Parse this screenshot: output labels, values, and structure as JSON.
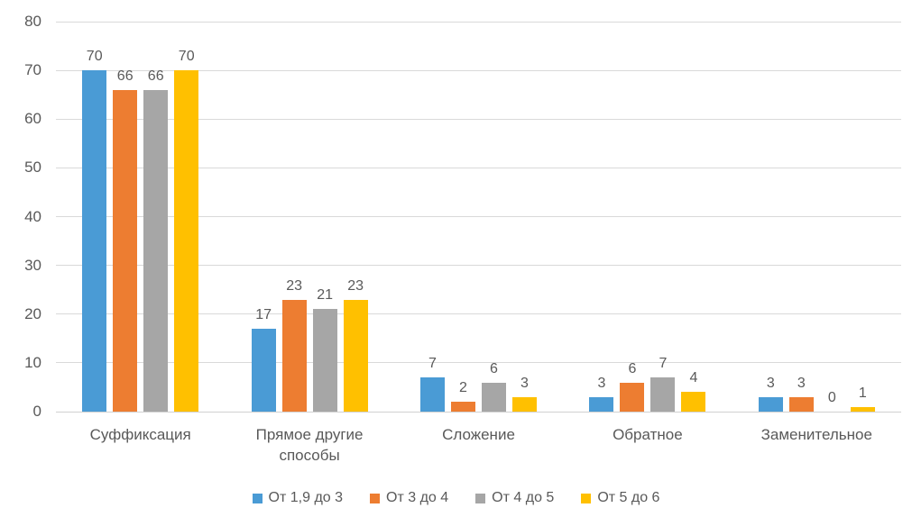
{
  "chart_data": {
    "type": "bar",
    "title": "",
    "xlabel": "",
    "ylabel": "",
    "categories": [
      "Суффиксация",
      "Прямое другие способы",
      "Сложение",
      "Обратное",
      "Заменительное"
    ],
    "series": [
      {
        "name": "От 1,9 до 3",
        "color": "#4A9BD5",
        "values": [
          70,
          17,
          7,
          3,
          3
        ]
      },
      {
        "name": "От 3 до 4",
        "color": "#ED7D31",
        "values": [
          66,
          23,
          2,
          6,
          3
        ]
      },
      {
        "name": "От 4 до 5",
        "color": "#A6A6A6",
        "values": [
          66,
          21,
          6,
          7,
          0
        ]
      },
      {
        "name": "От 5 до 6",
        "color": "#FFC000",
        "values": [
          70,
          23,
          3,
          4,
          1
        ]
      }
    ],
    "ylim": [
      0,
      80
    ],
    "yticks": [
      0,
      10,
      20,
      30,
      40,
      50,
      60,
      70,
      80
    ],
    "grid": true,
    "data_labels": true,
    "legend_position": "bottom",
    "text_color": "#595959",
    "gridline_color": "#D9D9D9",
    "background_color": "#FFFFFF"
  }
}
